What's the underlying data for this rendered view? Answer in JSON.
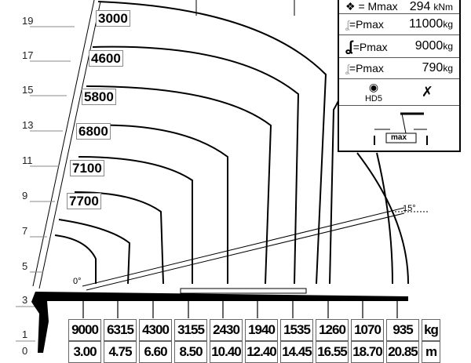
{
  "axis_labels": [
    "19",
    "17",
    "15",
    "13",
    "11",
    "9",
    "7",
    "5",
    "3",
    "1",
    "0"
  ],
  "boom_loads": [
    "3000",
    "4600",
    "5800",
    "6800",
    "7100",
    "7700"
  ],
  "angles": [
    "0°",
    "15°"
  ],
  "spec_box": {
    "rows": [
      {
        "icon": "moment-icon",
        "label": "= Mmax",
        "value": "294",
        "unit": "kNm"
      },
      {
        "icon": "hook-light-icon",
        "label": "=Pmax",
        "value": "11000",
        "unit": "kg"
      },
      {
        "icon": "hook-icon",
        "label": "=Pmax",
        "value": "9000",
        "unit": "kg"
      },
      {
        "icon": "hook-light-icon",
        "label": "=Pmax",
        "value": "790",
        "unit": "kg"
      }
    ],
    "hd_label": "HD5",
    "max_label": "max"
  },
  "load_table": {
    "kg": [
      "9000",
      "6315",
      "4300",
      "3155",
      "2430",
      "1940",
      "1535",
      "1260",
      "1070",
      "935"
    ],
    "m": [
      "3.00",
      "4.75",
      "6.60",
      "8.50",
      "10.40",
      "12.40",
      "14.45",
      "16.55",
      "18.70",
      "20.85"
    ],
    "kg_unit": "kg",
    "m_unit": "m"
  }
}
